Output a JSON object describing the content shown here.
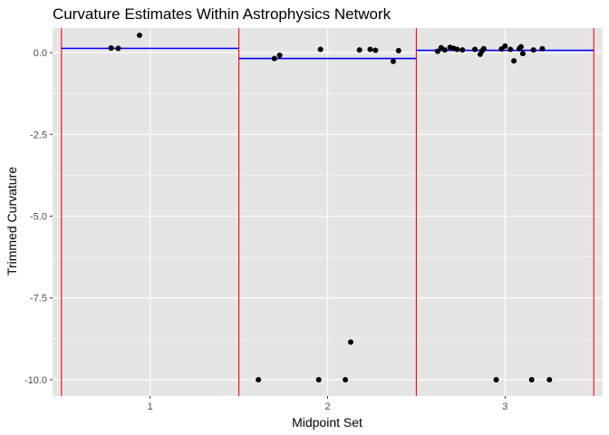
{
  "chart_data": {
    "type": "scatter",
    "title": "Curvature Estimates Within Astrophysics Network",
    "xlabel": "Midpoint Set",
    "ylabel": "Trimmed Curvature",
    "xlim": [
      0.45,
      3.55
    ],
    "ylim": [
      -10.5,
      0.75
    ],
    "x_ticks": [
      1,
      2,
      3
    ],
    "x_tick_labels": [
      "1",
      "2",
      "3"
    ],
    "y_ticks": [
      0,
      -2.5,
      -5,
      -7.5,
      -10
    ],
    "y_tick_labels": [
      "0.0",
      "-2.5",
      "-5.0",
      "-7.5",
      "-10.0"
    ],
    "grid": true,
    "background": "#e5e5e5",
    "grid_color": "#ffffff",
    "point_color": "#000000",
    "set_boundaries": {
      "x": [
        0.5,
        1.5,
        2.5,
        3.5
      ],
      "color": "#ff0000"
    },
    "set_means": {
      "color": "#0000ff",
      "segments": [
        {
          "x_start": 0.5,
          "x_end": 1.5,
          "y": 0.13
        },
        {
          "x_start": 1.5,
          "x_end": 2.5,
          "y": -0.18
        },
        {
          "x_start": 2.5,
          "x_end": 3.5,
          "y": 0.07
        }
      ]
    },
    "points": [
      {
        "x": 0.78,
        "y": 0.14
      },
      {
        "x": 0.82,
        "y": 0.13
      },
      {
        "x": 0.94,
        "y": 0.53
      },
      {
        "x": 1.61,
        "y": -10.0
      },
      {
        "x": 1.7,
        "y": -0.18
      },
      {
        "x": 1.73,
        "y": -0.08
      },
      {
        "x": 1.95,
        "y": -10.0
      },
      {
        "x": 1.96,
        "y": 0.1
      },
      {
        "x": 2.1,
        "y": -10.0
      },
      {
        "x": 2.13,
        "y": -8.85
      },
      {
        "x": 2.18,
        "y": 0.08
      },
      {
        "x": 2.24,
        "y": 0.1
      },
      {
        "x": 2.27,
        "y": 0.07
      },
      {
        "x": 2.37,
        "y": -0.27
      },
      {
        "x": 2.4,
        "y": 0.06
      },
      {
        "x": 2.62,
        "y": 0.04
      },
      {
        "x": 2.64,
        "y": 0.15
      },
      {
        "x": 2.66,
        "y": 0.08
      },
      {
        "x": 2.69,
        "y": 0.16
      },
      {
        "x": 2.71,
        "y": 0.13
      },
      {
        "x": 2.73,
        "y": 0.1
      },
      {
        "x": 2.76,
        "y": 0.08
      },
      {
        "x": 2.83,
        "y": 0.1
      },
      {
        "x": 2.86,
        "y": -0.05
      },
      {
        "x": 2.87,
        "y": 0.05
      },
      {
        "x": 2.88,
        "y": 0.12
      },
      {
        "x": 2.95,
        "y": -10.0
      },
      {
        "x": 2.98,
        "y": 0.11
      },
      {
        "x": 3.0,
        "y": 0.2
      },
      {
        "x": 3.03,
        "y": 0.1
      },
      {
        "x": 3.05,
        "y": -0.25
      },
      {
        "x": 3.08,
        "y": 0.12
      },
      {
        "x": 3.09,
        "y": 0.18
      },
      {
        "x": 3.1,
        "y": -0.03
      },
      {
        "x": 3.15,
        "y": -10.0
      },
      {
        "x": 3.16,
        "y": 0.08
      },
      {
        "x": 3.21,
        "y": 0.12
      },
      {
        "x": 3.25,
        "y": -10.0
      }
    ]
  }
}
